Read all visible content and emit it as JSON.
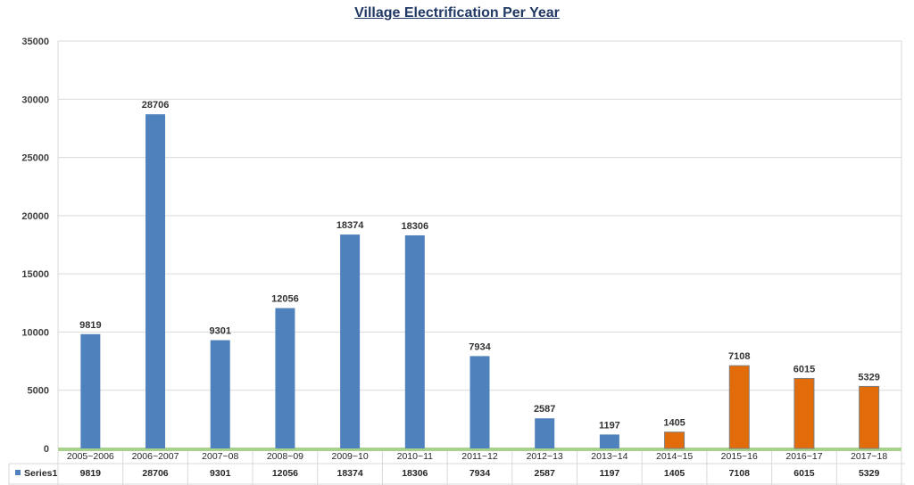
{
  "chart_data": {
    "type": "bar",
    "title": "Village Electrification Per Year",
    "categories": [
      "2005~2006",
      "2006~2007",
      "2007~08",
      "2008~09",
      "2009~10",
      "2010~11",
      "2011~12",
      "2012~13",
      "2013~14",
      "2014~15",
      "2015~16",
      "2016~17",
      "2017~18"
    ],
    "series": [
      {
        "name": "Series1",
        "values": [
          9819,
          28706,
          9301,
          12056,
          18374,
          18306,
          7934,
          2587,
          1197,
          1405,
          7108,
          6015,
          5329
        ]
      }
    ],
    "ylim": [
      0,
      35000
    ],
    "yticks": [
      0,
      5000,
      10000,
      15000,
      20000,
      25000,
      30000,
      35000
    ],
    "grid": true,
    "data_table": true,
    "colors": {
      "series": "#4f81bd",
      "highlight": "#e36c0a",
      "highlight_from_index": 9
    }
  }
}
